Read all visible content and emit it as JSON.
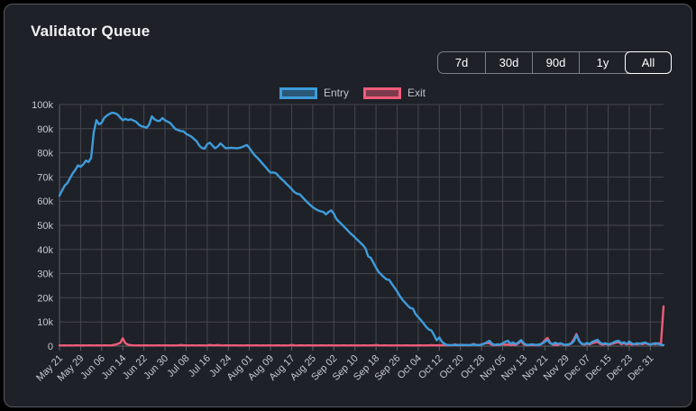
{
  "card": {
    "title": "Validator Queue"
  },
  "time_range_buttons": {
    "options": [
      "7d",
      "30d",
      "90d",
      "1y",
      "All"
    ],
    "selected": "All"
  },
  "legend": [
    {
      "label": "Entry",
      "color": "#3e9cdb"
    },
    {
      "label": "Exit",
      "color": "#f05c7a"
    }
  ],
  "colors": {
    "card_background": "#1e2127",
    "grid": "#45484e",
    "axis": "#5d6066",
    "tick_text": "#c6c9ce",
    "entry_line": "#3e9cdb",
    "exit_line": "#f05c7a"
  },
  "chart_data": {
    "type": "line",
    "title": "Validator Queue",
    "xlabel": "",
    "ylabel": "",
    "ylim": [
      0,
      100000
    ],
    "grid": true,
    "legend_position": "top-center",
    "x_unit": "daily values, day 0 = May 21",
    "x_tick_every_days": 8,
    "x_tick_labels": [
      "May 21",
      "May 29",
      "Jun 06",
      "Jun 14",
      "Jun 22",
      "Jun 30",
      "Jul 08",
      "Jul 16",
      "Jul 24",
      "Aug 01",
      "Aug 09",
      "Aug 17",
      "Aug 25",
      "Sep 02",
      "Sep 10",
      "Sep 18",
      "Sep 26",
      "Oct 04",
      "Oct 12",
      "Oct 20",
      "Oct 28",
      "Nov 05",
      "Nov 13",
      "Nov 21",
      "Nov 29",
      "Dec 07",
      "Dec 15",
      "Dec 23",
      "Dec 31"
    ],
    "y_tick_labels": [
      "0",
      "10k",
      "20k",
      "30k",
      "40k",
      "50k",
      "60k",
      "70k",
      "80k",
      "90k",
      "100k"
    ],
    "series": [
      {
        "name": "Entry",
        "color": "#3e9cdb",
        "values": [
          62300,
          64500,
          66500,
          67500,
          69500,
          71500,
          73000,
          74800,
          74300,
          75200,
          76800,
          76200,
          78000,
          88500,
          93500,
          91800,
          92500,
          94500,
          95500,
          96200,
          96600,
          96400,
          95900,
          94600,
          93500,
          94100,
          93600,
          93900,
          93400,
          92900,
          91800,
          91000,
          90800,
          90400,
          91700,
          95100,
          93900,
          93300,
          93200,
          94400,
          93500,
          92900,
          92300,
          91000,
          89800,
          89400,
          89000,
          88900,
          87900,
          87300,
          86700,
          85700,
          84800,
          83000,
          82000,
          81700,
          83600,
          84200,
          83000,
          81900,
          82600,
          83900,
          82900,
          81900,
          82000,
          82100,
          82000,
          81900,
          82000,
          82300,
          82800,
          83300,
          82000,
          80400,
          79000,
          78000,
          76800,
          75500,
          74300,
          73000,
          71800,
          71900,
          71600,
          70500,
          69300,
          68400,
          67200,
          66200,
          65000,
          63800,
          63100,
          62900,
          61800,
          60600,
          59500,
          58500,
          57500,
          56800,
          56200,
          55800,
          55600,
          54500,
          55500,
          56200,
          54800,
          52600,
          51500,
          50400,
          49300,
          48200,
          47000,
          46000,
          45000,
          43900,
          42900,
          41800,
          40500,
          37200,
          36600,
          34500,
          32500,
          30700,
          29600,
          28500,
          27600,
          27400,
          25800,
          24200,
          22600,
          20800,
          19200,
          18000,
          16800,
          15800,
          15500,
          13200,
          12000,
          10800,
          9400,
          8000,
          6900,
          6500,
          4500,
          2400,
          3600,
          1800,
          900,
          500,
          400,
          400,
          500,
          400,
          600,
          400,
          500,
          400,
          400,
          700,
          500,
          400,
          600,
          1000,
          1600,
          2200,
          1000,
          500,
          800,
          600,
          1200,
          1800,
          2200,
          1000,
          1500,
          800,
          1600,
          2500,
          1200,
          600,
          500,
          800,
          600,
          500,
          700,
          1000,
          1800,
          2500,
          1200,
          800,
          1400,
          900,
          1200,
          700,
          500,
          800,
          1000,
          2000,
          4600,
          2000,
          1000,
          800,
          1300,
          900,
          1800,
          2200,
          2600,
          1400,
          900,
          1200,
          800,
          1000,
          1500,
          2000,
          2200,
          1200,
          1600,
          900,
          1900,
          1100,
          800,
          1200,
          900,
          1300,
          1500,
          1000,
          700,
          900,
          1200,
          900,
          600,
          400
        ]
      },
      {
        "name": "Exit",
        "color": "#f05c7a",
        "values": [
          300,
          250,
          300,
          250,
          300,
          250,
          300,
          300,
          250,
          300,
          250,
          300,
          300,
          250,
          300,
          300,
          250,
          300,
          300,
          250,
          350,
          600,
          900,
          1300,
          3200,
          1200,
          600,
          400,
          300,
          250,
          300,
          250,
          300,
          300,
          250,
          300,
          250,
          300,
          300,
          250,
          300,
          300,
          250,
          300,
          250,
          300,
          450,
          350,
          300,
          250,
          300,
          300,
          250,
          300,
          300,
          250,
          300,
          450,
          350,
          300,
          450,
          300,
          250,
          300,
          300,
          250,
          300,
          300,
          250,
          300,
          250,
          300,
          300,
          250,
          300,
          300,
          250,
          300,
          250,
          300,
          300,
          250,
          300,
          300,
          250,
          300,
          250,
          300,
          450,
          300,
          250,
          300,
          300,
          250,
          300,
          300,
          250,
          300,
          250,
          300,
          300,
          250,
          300,
          300,
          250,
          300,
          250,
          300,
          300,
          250,
          300,
          300,
          250,
          300,
          250,
          300,
          300,
          250,
          300,
          300,
          450,
          300,
          250,
          300,
          300,
          250,
          300,
          250,
          300,
          300,
          250,
          300,
          300,
          250,
          300,
          250,
          300,
          300,
          250,
          300,
          300,
          400,
          350,
          300,
          350,
          400,
          350,
          300,
          350,
          400,
          700,
          400,
          400,
          500,
          400,
          400,
          500,
          900,
          500,
          400,
          700,
          1000,
          1300,
          1200,
          600,
          400,
          500,
          500,
          800,
          600,
          700,
          500,
          600,
          500,
          1200,
          2000,
          800,
          400,
          400,
          500,
          400,
          400,
          500,
          1200,
          2400,
          3400,
          1400,
          600,
          500,
          500,
          1000,
          600,
          400,
          600,
          1200,
          2800,
          5000,
          2200,
          900,
          600,
          1000,
          700,
          1200,
          1500,
          1800,
          900,
          600,
          900,
          600,
          800,
          1100,
          1400,
          1600,
          800,
          1200,
          700,
          1000,
          600,
          900,
          700,
          1100,
          800,
          1200,
          900,
          600,
          1000,
          800,
          1200,
          900,
          16400
        ]
      }
    ]
  }
}
